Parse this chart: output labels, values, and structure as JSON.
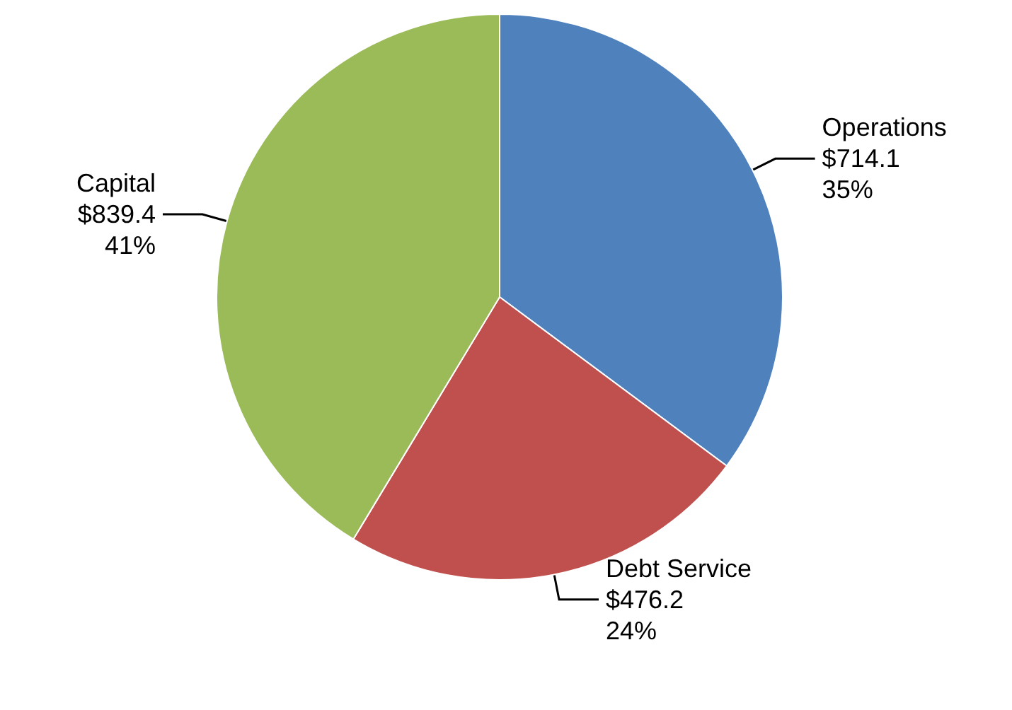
{
  "chart_data": {
    "type": "pie",
    "categories": [
      "Operations",
      "Debt Service",
      "Capital"
    ],
    "values": [
      714.1,
      476.2,
      839.4
    ],
    "colors": [
      "#4f81bd",
      "#c0504d",
      "#9bbb59"
    ],
    "value_labels": [
      "$714.1\n35%",
      "$476.2\n24%",
      "$839.4\n41%"
    ]
  }
}
